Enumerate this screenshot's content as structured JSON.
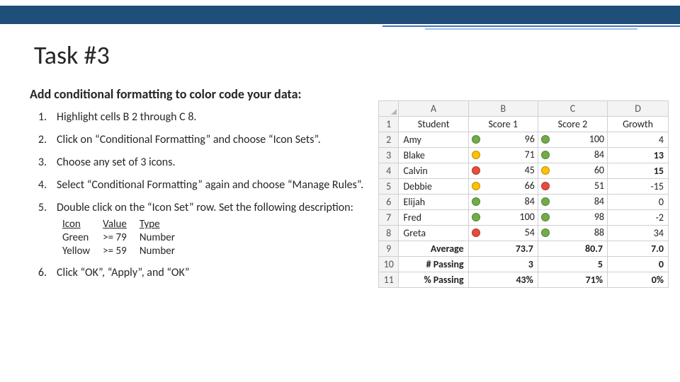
{
  "title": "Task #3",
  "subtitle": "Add conditional formatting to color code your data:",
  "steps": [
    {
      "n": "1.",
      "text": "Highlight cells B 2 through C 8."
    },
    {
      "n": "2.",
      "text": "Click on “Conditional Formatting” and choose “Icon Sets”."
    },
    {
      "n": "3.",
      "text": "Choose any set of 3 icons."
    },
    {
      "n": "4.",
      "text": "Select “Conditional Formatting” again and choose “Manage Rules”."
    },
    {
      "n": "5.",
      "text": "Double click on the “Icon Set” row.  Set the following description:"
    },
    {
      "n": "6.",
      "text": "Click “OK”, “Apply”, and “OK”"
    }
  ],
  "ivt": {
    "headers": [
      "Icon",
      "Value",
      "Type"
    ],
    "rows": [
      [
        "Green",
        ">= 79",
        "Number"
      ],
      [
        "Yellow",
        ">= 59",
        "Number"
      ]
    ]
  },
  "colors": {
    "green": "#70ad47",
    "yellow": "#ffc000",
    "red": "#e74c3c"
  },
  "sheet": {
    "cols": [
      "A",
      "B",
      "C",
      "D"
    ],
    "header_row": [
      "Student",
      "Score 1",
      "Score 2",
      "Growth"
    ],
    "rows": [
      {
        "r": "2",
        "a": "Amy",
        "b": {
          "v": "96",
          "c": "green"
        },
        "c": {
          "v": "100",
          "c": "green"
        },
        "d": "4",
        "db": false
      },
      {
        "r": "3",
        "a": "Blake",
        "b": {
          "v": "71",
          "c": "yellow"
        },
        "c": {
          "v": "84",
          "c": "green"
        },
        "d": "13",
        "db": true
      },
      {
        "r": "4",
        "a": "Calvin",
        "b": {
          "v": "45",
          "c": "red"
        },
        "c": {
          "v": "60",
          "c": "yellow"
        },
        "d": "15",
        "db": true
      },
      {
        "r": "5",
        "a": "Debbie",
        "b": {
          "v": "66",
          "c": "yellow"
        },
        "c": {
          "v": "51",
          "c": "red"
        },
        "d": "-15",
        "db": false
      },
      {
        "r": "6",
        "a": "Elijah",
        "b": {
          "v": "84",
          "c": "green"
        },
        "c": {
          "v": "84",
          "c": "green"
        },
        "d": "0",
        "db": false
      },
      {
        "r": "7",
        "a": "Fred",
        "b": {
          "v": "100",
          "c": "green"
        },
        "c": {
          "v": "98",
          "c": "green"
        },
        "d": "-2",
        "db": false
      },
      {
        "r": "8",
        "a": "Greta",
        "b": {
          "v": "54",
          "c": "red"
        },
        "c": {
          "v": "88",
          "c": "green"
        },
        "d": "34",
        "db": false
      }
    ],
    "summary": [
      {
        "r": "9",
        "a": "Average",
        "b": "73.7",
        "c": "80.7",
        "d": "7.0",
        "bold": true
      },
      {
        "r": "10",
        "a": "# Passing",
        "b": "3",
        "c": "5",
        "d": "0",
        "bold": true
      },
      {
        "r": "11",
        "a": "% Passing",
        "b": "43%",
        "c": "71%",
        "d": "0%",
        "bold": true
      }
    ]
  }
}
